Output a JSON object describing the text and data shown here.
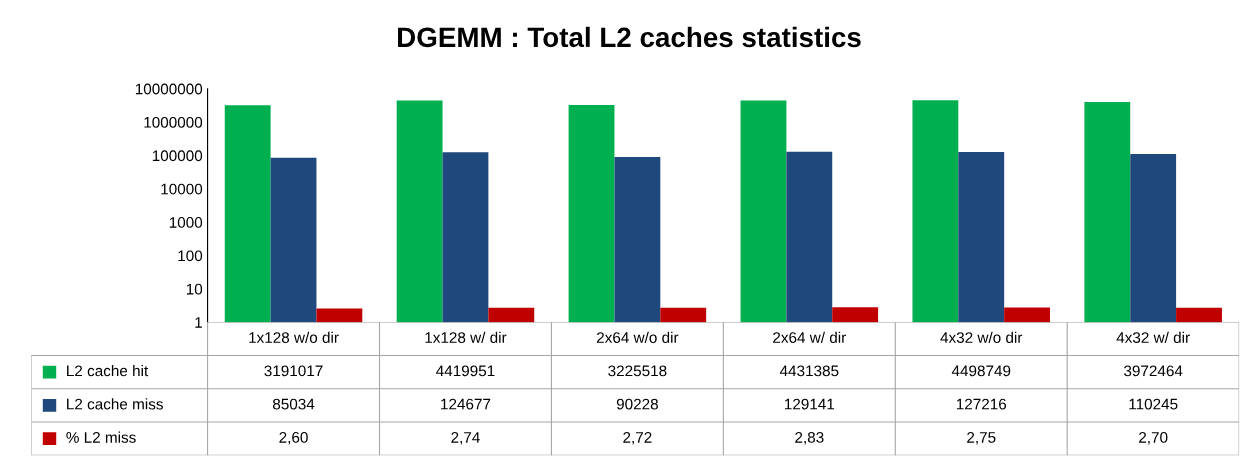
{
  "chart_data": {
    "type": "bar",
    "title": "DGEMM : Total L2 caches statistics",
    "categories": [
      "1x128 w/o dir",
      "1x128 w/ dir",
      "2x64 w/o dir",
      "2x64 w/ dir",
      "4x32 w/o dir",
      "4x32 w/ dir"
    ],
    "series": [
      {
        "name": "L2 cache hit",
        "color": "#00b050",
        "values": [
          3191017,
          4419951,
          3225518,
          4431385,
          4498749,
          3972464
        ],
        "value_labels": [
          "3191017",
          "4419951",
          "3225518",
          "4431385",
          "4498749",
          "3972464"
        ]
      },
      {
        "name": "L2 cache miss",
        "color": "#1f497d",
        "values": [
          85034,
          124677,
          90228,
          129141,
          127216,
          110245
        ],
        "value_labels": [
          "85034",
          "124677",
          "90228",
          "129141",
          "127216",
          "110245"
        ]
      },
      {
        "name": "% L2 miss",
        "color": "#c00000",
        "values": [
          2.6,
          2.74,
          2.72,
          2.83,
          2.75,
          2.7
        ],
        "value_labels": [
          "2,60",
          "2,74",
          "2,72",
          "2,83",
          "2,75",
          "2,70"
        ]
      }
    ],
    "log": "y",
    "ylim": [
      1,
      10000000
    ],
    "yticks": [
      1,
      10,
      100,
      1000,
      10000,
      100000,
      1000000,
      10000000
    ],
    "grid": false,
    "legend": "bottom"
  }
}
